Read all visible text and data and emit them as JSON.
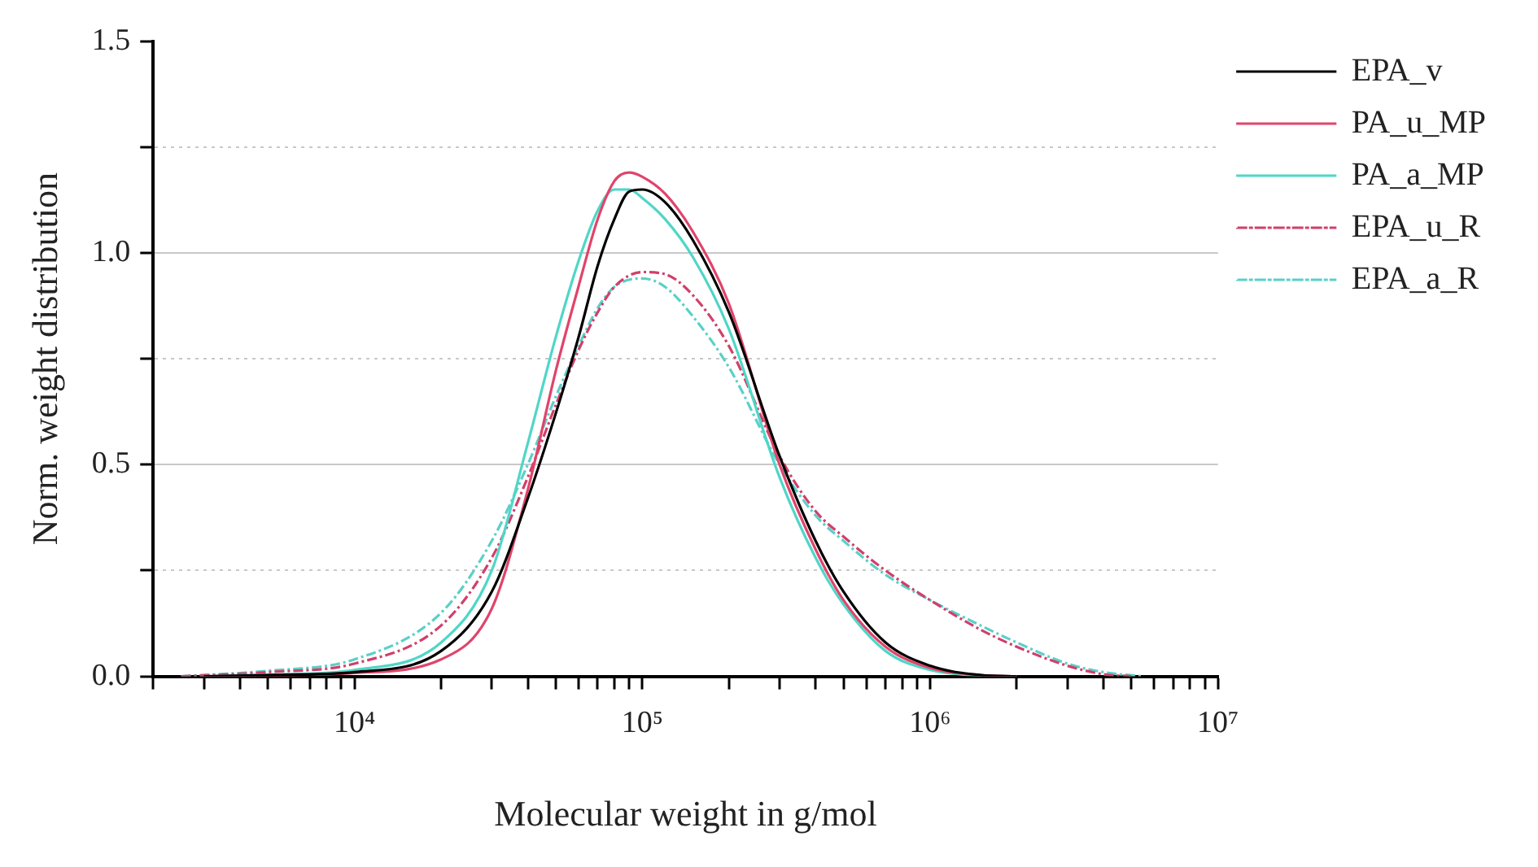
{
  "chart_data": {
    "type": "line",
    "xlabel": "Molecular weight in g/mol",
    "ylabel": "Norm. weight distribution",
    "log": "x",
    "grid": "y",
    "legend": "top right",
    "marker": "none",
    "xlim": [
      2000,
      10000000
    ],
    "xticks": [
      {
        "value": 2000,
        "label": null
      },
      {
        "value": 3000,
        "label": null
      },
      {
        "value": 4000,
        "label": null
      },
      {
        "value": 5000,
        "label": null
      },
      {
        "value": 6000,
        "label": null
      },
      {
        "value": 7000,
        "label": null
      },
      {
        "value": 8000,
        "label": null
      },
      {
        "value": 9000,
        "label": null
      },
      {
        "value": 10000,
        "label": "10⁴"
      },
      {
        "value": 20000,
        "label": null
      },
      {
        "value": 30000,
        "label": null
      },
      {
        "value": 40000,
        "label": null
      },
      {
        "value": 50000,
        "label": null
      },
      {
        "value": 60000,
        "label": null
      },
      {
        "value": 70000,
        "label": null
      },
      {
        "value": 80000,
        "label": null
      },
      {
        "value": 90000,
        "label": null
      },
      {
        "value": 100000,
        "label": "10⁵"
      },
      {
        "value": 200000,
        "label": null
      },
      {
        "value": 300000,
        "label": null
      },
      {
        "value": 400000,
        "label": null
      },
      {
        "value": 500000,
        "label": null
      },
      {
        "value": 600000,
        "label": null
      },
      {
        "value": 700000,
        "label": null
      },
      {
        "value": 800000,
        "label": null
      },
      {
        "value": 900000,
        "label": null
      },
      {
        "value": 1000000,
        "label": "10⁶"
      },
      {
        "value": 2000000,
        "label": null
      },
      {
        "value": 3000000,
        "label": null
      },
      {
        "value": 4000000,
        "label": null
      },
      {
        "value": 5000000,
        "label": null
      },
      {
        "value": 6000000,
        "label": null
      },
      {
        "value": 7000000,
        "label": null
      },
      {
        "value": 8000000,
        "label": null
      },
      {
        "value": 9000000,
        "label": null
      },
      {
        "value": 10000000,
        "label": "10⁷"
      }
    ],
    "ylim": [
      0,
      1.5
    ],
    "yticks": [
      {
        "value": 0,
        "label": "0.0"
      },
      {
        "value": 0.25,
        "label": null
      },
      {
        "value": 0.5,
        "label": "0.5"
      },
      {
        "value": 0.75,
        "label": null
      },
      {
        "value": 1,
        "label": "1.0"
      },
      {
        "value": 1.25,
        "label": null
      },
      {
        "value": 1.5,
        "label": "1.5"
      }
    ],
    "x": [
      3000,
      5000,
      10000,
      20000,
      30000,
      40000,
      50000,
      60000,
      70000,
      80000,
      90000,
      100000,
      120000,
      150000,
      200000,
      300000,
      400000,
      500000,
      700000,
      1000000,
      1500000,
      2000000
    ],
    "series": [
      {
        "name": "EPA_v",
        "color": "#000000",
        "line_style": "solid",
        "values": [
          0,
          0.003,
          0.01,
          0.06,
          0.2,
          0.42,
          0.62,
          0.8,
          0.97,
          1.08,
          1.145,
          1.15,
          1.12,
          1.03,
          0.86,
          0.52,
          0.32,
          0.2,
          0.08,
          0.025,
          0.003,
          0
        ]
      },
      {
        "name": "PA_u_MP",
        "color": "#e0446a",
        "line_style": "solid",
        "values": [
          0,
          0.002,
          0.008,
          0.04,
          0.16,
          0.44,
          0.72,
          0.92,
          1.08,
          1.17,
          1.19,
          1.18,
          1.14,
          1.05,
          0.88,
          0.5,
          0.3,
          0.18,
          0.07,
          0.02,
          0.003,
          0
        ]
      },
      {
        "name": "PA_a_MP",
        "color": "#4fd6c8",
        "line_style": "solid",
        "values": [
          0,
          0.004,
          0.015,
          0.08,
          0.25,
          0.55,
          0.8,
          0.98,
          1.1,
          1.15,
          1.15,
          1.13,
          1.08,
          0.99,
          0.82,
          0.47,
          0.28,
          0.17,
          0.06,
          0.015,
          0.002,
          0
        ]
      },
      {
        "name": "EPA_u_R",
        "color": "#d0406a",
        "line_style": "dashed",
        "x": [
          2500,
          5000,
          10000,
          20000,
          30000,
          40000,
          50000,
          60000,
          70000,
          80000,
          100000,
          120000,
          150000,
          200000,
          300000,
          400000,
          500000,
          700000,
          1000000,
          1500000,
          2000000,
          3000000,
          4000000,
          5000000
        ],
        "values": [
          0,
          0.01,
          0.03,
          0.12,
          0.28,
          0.47,
          0.64,
          0.77,
          0.86,
          0.92,
          0.955,
          0.95,
          0.9,
          0.78,
          0.52,
          0.39,
          0.33,
          0.25,
          0.18,
          0.11,
          0.07,
          0.025,
          0.005,
          0
        ]
      },
      {
        "name": "EPA_a_R",
        "color": "#5ad0c8",
        "line_style": "dashed",
        "x": [
          2500,
          5000,
          10000,
          20000,
          30000,
          40000,
          50000,
          60000,
          70000,
          80000,
          100000,
          120000,
          150000,
          200000,
          300000,
          400000,
          500000,
          700000,
          1000000,
          1500000,
          2000000,
          3000000,
          4000000,
          5500000
        ],
        "values": [
          0,
          0.013,
          0.04,
          0.15,
          0.32,
          0.5,
          0.66,
          0.78,
          0.87,
          0.92,
          0.94,
          0.92,
          0.85,
          0.73,
          0.5,
          0.38,
          0.32,
          0.24,
          0.18,
          0.12,
          0.08,
          0.03,
          0.01,
          0
        ]
      }
    ]
  }
}
